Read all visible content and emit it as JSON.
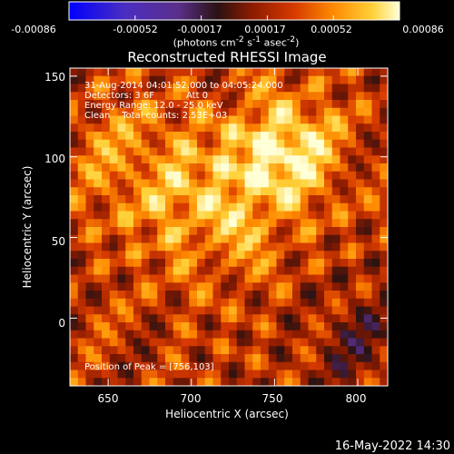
{
  "chart_data": {
    "type": "heatmap",
    "title": "Reconstructed RHESSI Image",
    "xlabel": "Heliocentric X (arcsec)",
    "ylabel": "Heliocentric Y (arcsec)",
    "xlim": [
      627,
      818
    ],
    "ylim": [
      -42,
      155
    ],
    "x_ticks": [
      650,
      700,
      750,
      800
    ],
    "y_ticks": [
      0,
      50,
      100,
      150
    ],
    "colorbar": {
      "ticks": [
        "-0.00086",
        "-0.00052",
        "-0.00017",
        "0.00017",
        "0.00052",
        "0.00086"
      ],
      "range": [
        -0.00086,
        0.00086
      ],
      "units_html": "(photons cm<sup>-2</sup> s<sup>-1</sup> asec<sup>-2</sup>)",
      "colors": [
        "#0000ff",
        "#4b2ec0",
        "#5a2f8a",
        "#2a1212",
        "#8a1a00",
        "#d63a00",
        "#ff8a00",
        "#ffd23a",
        "#ffffd8"
      ]
    },
    "annotations": {
      "line1": "31-Aug-2014 04:01:52.000 to 04:05:24.000",
      "line2": "Detectors: 3 6F",
      "line2b": "Att 0",
      "line3": "Energy Range: 12.0 - 25.0 keV",
      "line4": "Clean    Total counts: 2.53E+03",
      "peak": "Position of Peak = [756,103]"
    },
    "peak_position": [
      756,
      103
    ]
  },
  "footer": {
    "date": "16-May-2022 14:30"
  }
}
